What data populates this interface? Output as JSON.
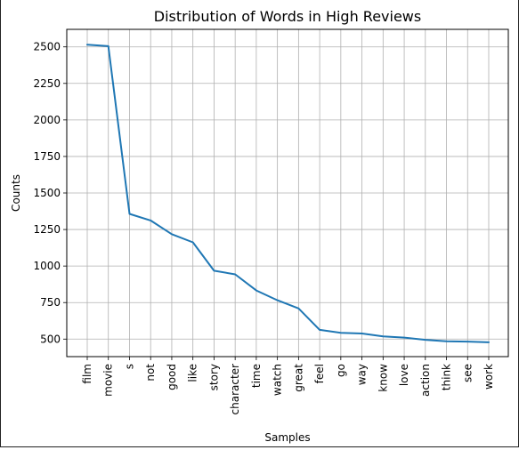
{
  "chart_data": {
    "type": "line",
    "title": "Distribution of Words in High Reviews",
    "xlabel": "Samples",
    "ylabel": "Counts",
    "categories": [
      "film",
      "movie",
      "s",
      "not",
      "good",
      "like",
      "story",
      "character",
      "time",
      "watch",
      "great",
      "feel",
      "go",
      "way",
      "know",
      "love",
      "action",
      "think",
      "see",
      "work"
    ],
    "values": [
      2515,
      2505,
      1357,
      1312,
      1218,
      1162,
      968,
      943,
      833,
      766,
      710,
      563,
      543,
      538,
      518,
      510,
      495,
      485,
      483,
      478
    ],
    "ylim": [
      380,
      2620
    ],
    "yticks": [
      500,
      750,
      1000,
      1250,
      1500,
      1750,
      2000,
      2250,
      2500
    ],
    "grid": true,
    "line_color": "#1f77b4"
  }
}
